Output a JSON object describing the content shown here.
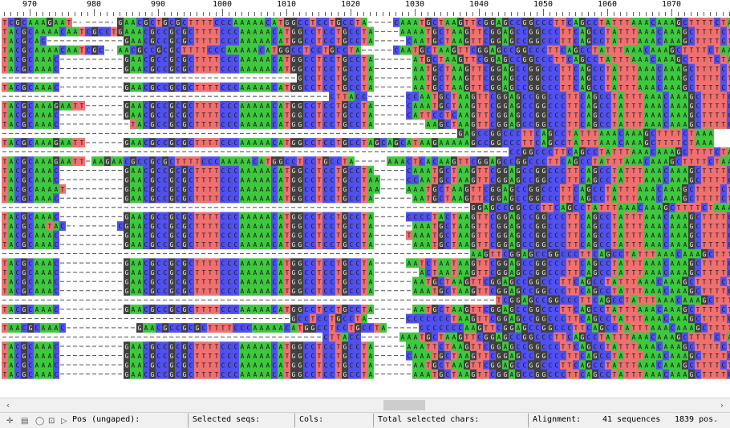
{
  "ruler": {
    "labels": [
      "970",
      "980",
      "990",
      "1000",
      "1010",
      "1020",
      "1030",
      "1040",
      "1050",
      "1060",
      "1070"
    ]
  },
  "colors": {
    "A": "#3ec83e",
    "C": "#5050ee",
    "G": "#404040",
    "T": "#f07070",
    "gap": "#ffffff",
    "gap_dash": "#505050"
  },
  "sequences": [
    "TCGCAAAGAAT-.----.GAACGCTGCGCTTTTCCCAAAAACATGGCCTCCTGCCTA----CAAATGCTAAGTTCGGAGCCGGCCCTTCAGCCTATTTAAACAAAGCTTTTCTAAA",
    "TACGCAAAACAATCGCCTGAAACGCCGCGCTTTTCCCAAAAACATGGCCTCCTGCCTA----AAAATGCTAAGTTCGGAGCCGGCCCTTCAGCCTATTTAAACAAAGCTTTTCTAAA",
    "TACGCAC------------GAACGCCGCGCTTTTCCCAAAAACATGGCCTCCTGCCTA-----CAATGCTAAGTTCGGAGCCGGCCCTTCAGCCTATTTAAACAAAGCTTTTCTAAA",
    "TACGCAAAACAATCGC-.AACGCCGCGCTTTTCCCAAAAACATGGCCTCCTGCCTA-----CAATGCTAAGTTCGGAGCCGGCCCTTCAGCCTATTTAAACAAAGCTTTTCTAAA",
    "TACGCAAAC----------GAACGCCGCGCTTTTCCCAAAAACATGGCCTCCTGCCTA------ATGCTAAGTTCGGAGCCGGCCCTTCAGCCTATTTAAACAAAGCTTTTCTAAA",
    "TACGCAAAC----------GAACGCCGCGCTTTTCCCAAAAACATGGCCTCCTGCCTA------AATGCTAAGTTCGGAGCCGGCCCTTCAGCCTATTTAAACAAAGCTTTTCTAAA",
    "----------------------------------------------GCCTCCTGCCTA------AATGCTAAGTTCGGAGCCGGCCCTTCAGCCTATTTAAACAAAGCTTTTCTAAA",
    "TACGCAAAC----------GAACGCCGCGCTTTTCCCAAAAACATGGCCTCCTGCCTA------AATGCTAAGTTCGGAGCCGGCCCTTCAGCCTATTTAAACAAAGCTTTTCTAAA",
    "---------------------------------------------------CTTACC------CCAATGCTAAGTTCGGAGCCGGCCCTTCAGCCTATTTAAACAAAGCTTTTCTAAA",
    "TACGCAAAGAATT------GAACGCCGCGCTTTTCCCAAAAACATGGCCTCCTGCCTA-----CAAATGCTAAGTTCGGAGCCGGCCCTTCAGCCTATTTAAACAAAGCTTTTCTAAA",
    "TACGCAAAC----------GAACGCCGCGCTTTTCCCAAAAACATGGCCTCCTGCCTA-----CATTCCTCAAGTTCGGAGCCGGCCCTTCAGCCTATTTAAACAAAGCTTTTCTAAA",
    "TACGCAAAC-----------TACGCCGCGCTTTTCCCAAAAACATGGCCTCCTGCCTA--------AAGCTAAGTTCGGAGCCGGCCCTTCAGCCTATTTAAACAAAGCTTTTCTAAA",
    "-----------------------------------------------------------------------GAGCCGGCCCTTCAGCCTATTTAAACAAAGCTTTTCTAAA",
    "TACGCAAAGAATT------GAACGCCGCGCTTTTCCCAAAAACATGGCCTCCTGCCTAGCAGCATAAGAAAAAGCCGGCCCTTCAGCCTATTTAAACAAAGCTTTTCTAAA",
    "-------------------------------------------------------------------------------CCGGCCCTTCAGCCTATTTAAACAAAGCTTTTCTAAA",
    "TACGCAAAGAATT-AAGAACGCCGCGCTTTTCCCAAAAACATGGCCTCCTGCCTA-----AAACTCACAAGTTCGGAGCCGGCCCTTCAGCCTATTTAAACAAAGCTTTTCTAAA",
    "TACGCAAAC----------GAACGCCGCGCTTTTCCCAAAAACATGGCCTCCTGCCTA-----CAAATGCTAAGTTCGGAGCCGGCCCTTCAGCCTATTTAAACAAAGCTTTTCTAAA",
    "TACGCAAAC----------GAACGCCGCGCTTTTCCCAAAAACATGGCCTCCTGCCTAA----CCAATGCTAAGTTCGGAGCCGGCCCTTCAGCCTATTTAAACAAAGCTTTTCTAAA",
    "TACGCAAAAT---------GAACGCCGCGCTTTTCCCAAAAACATGGCCTCCTGCCTAA----AAATGCTAAGTTCGGAGCCGGCCCTTCAGCCTATTTAAACAAAGCTTTTCTAAA",
    "TACGCAAAC----------GAACGCCGCGCTTTTCCCAAAAACATGGCCTCCTGCCTA------AATGCTAAGTTCGGAGCCGGCCCTTCAGCCTATTTAAACAAAGCTTTTCTAAA",
    "-------------------------------------------------------------------------GGAGCCGGCCCTTCAGCCTATTTAAACAAAGCTTTTCTAAA",
    "TACGCAAAC----------GAACGCCGCGCTTTTCCCAAAAACATGGCCTCCTGCCTA-----CCCCTACTAAGTTCGGAGCCGGCCCTTCAGCCTATTTAAACAAAGCTTTTCTAAA",
    "TACGCAATAC-.------CGAACGCCGCGCTTTTCCCAAAAACATGGCCTCCTGCCTA------AAATGCTAAGTTCGGAGCCGGCCCTTCAGCCTATTTAAACAAAGCTTTTCTAAA",
    "TACGCAAAC----------GAACGCCGCGCTTTTCCCAAAAACATGGCCTCCTGCCTA-----TAAATGCTAAGTTCGGAGCCGGCCCTTCAGCCTATTTAAACAAAGCTTTTCTAAA",
    "TACGCAAAC----------GAACGCCGCGCTTTTCCCAAAAACATGGCCTCCTGCCTA------AAATGCTAAGTTCGGAGCCGGCCCTTCAGCCTATTTAAACAAAGCTTTTCTAAA",
    "-------------------------------------------------------------------------AAGTTCGGAGCCGGCCCTTCAGCCTATTTAAACAAAGCTTTTCTAAA",
    "TACGCAAAC----------GAACGCCGCGCTTTTCCCAAAAACATGGCCTCCTGCCTA-----AATCTAATAAGTTCGGAGCCGGCCCTTCAGCCTATTTAAACAAAGCTTTTCTAAA",
    "TACGCAAAC----------GAACGCCGCGCTTTTCCCAAAAACATGGCCTCCTGCCTA-------ACTAATAAGTTCGGAGCCGGCCCTTCAGCCTATTTAAACAAAGCTTTTCTAAA",
    "TACGCAAAC----------GAACGCCGCGCTTTTCCCAAAAACATGGCCTCCTGCCTA------AATGCTAAGTTCGGAGCCGGCCCTTCAGCCTATTTAAACAAAGCTTTTCTAAA",
    "TACGCAAAC----------GAACGCCGCGCTTTTCCCAAAAACATGGCCTCCTGCCTA------AAATGCTAAGTTCGGAGCCGGCCCTTCAGCCTATTTAAACAAAGCTTTTCTAAA",
    "-----------------------------------------------------------------------------TCGGAGCCGGCCCTTCAGCCTATTTAAACAAAGCTTTTCTAAA",
    "TACGCAAAC----------GAACGCCGCGCTTTTCCCAAAAACATGGCCTCCTGCCTA------AATGCTAAGTTCGGAGCCGGCCCTTCAGCCTATTTAAACAAAGCTTTTCTAAA",
    "---------------------------------------------GCCTCCTGCCTA------CCCCCCCTAAGTTCGGAGCCGGCCCTTCAGCCTATTTAAACAAAGCTTTTCTAAA",
    "TAACGCAAAC-----------GAACGCCGCGCTTTTCCCAAAAACATGGCCTCCTGCCTA-----CCCCCCCAAGTTCGGAGCCGGCCCTTCAGCCTATTTAAACAAAGCTTTTCTAAA",
    "--------------------------------------------------CTTACC------AAATGCTAAGTTCGGAGCCGGCCCTTCAGCCTATTTAAACAAAGCTTTTCTAAA",
    "TACGCAAAC----------GAACGCCGCGCTTTTCCCAAAAACATGGCCTCCTGCCTA-----AAATTCTAAGTTCGGAGCCGGCCCTTCAGCCTATTTAAACAAAGCTTTTCTAAA",
    "TACGCAAAC----------GAACGCCGCGCTTTTCCCAAAAACATGGCCTCCTGCCTA-----CAAATGCTAAGTTCGGAGCCGGCCCTTCAGCCTATTTAAACAAAGCTTTTCTAAA",
    "TACGCAAAC----------GAACGCCGCGCTTTTCCCAAAAACATGGCCTCCTGCCTA------AATGCTAAGTTCGGAGCCGGCCCTTCAGCCTATTTAAACAAAGCTTTTCTAAA",
    "TACGCAAAC----------GAACGCCGCGCTTTTCCCAAAAACATGGCCTCCTGCCTA------AAATGCTAAGTTCGGAGCCGGCCCTTCAGCCTATTTAAACAAAGCTTTTCTAAA"
  ],
  "scrollbar": {
    "left_arrow": "‹",
    "right_arrow": "›"
  },
  "statusbar": {
    "pos": "Pos (ungaped):",
    "selected_seqs": "Selected seqs:",
    "cols": "Cols:",
    "total_selected": "Total selected chars:",
    "alignment_label": "Alignment:",
    "sequences": "41 sequences",
    "positions": "1839 pos."
  },
  "mini_tools": [
    "✛",
    "▤",
    "◯",
    "⊡",
    "▷"
  ]
}
